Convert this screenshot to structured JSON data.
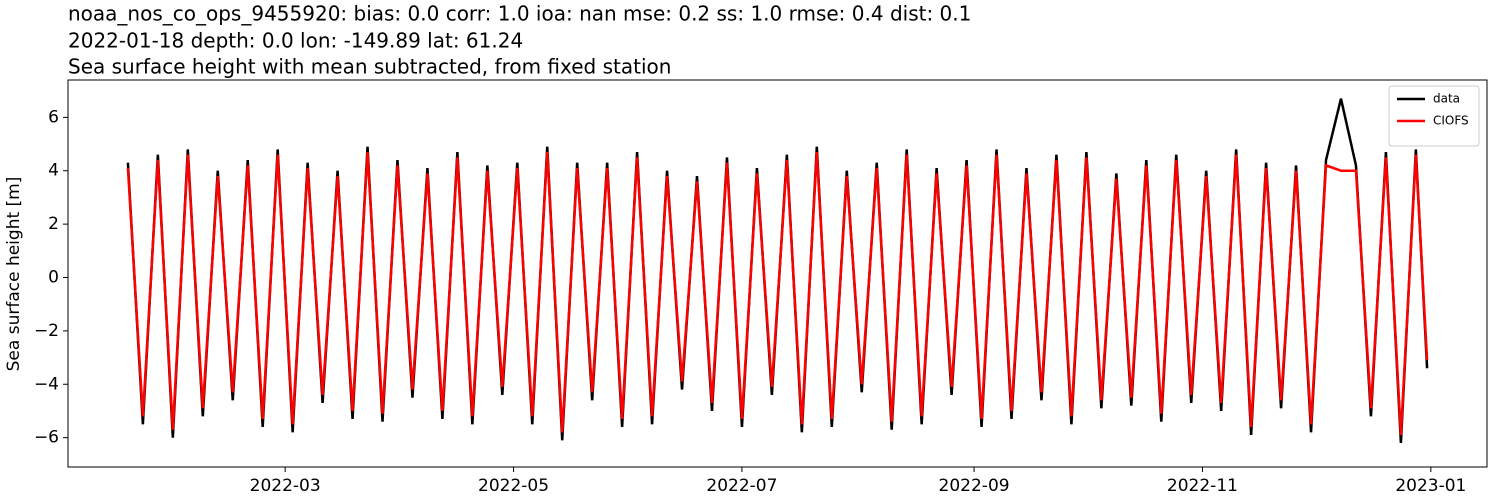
{
  "chart_data": {
    "type": "line",
    "title_lines": [
      "noaa_nos_co_ops_9455920: bias: 0.0  corr: 1.0  ioa: nan  mse: 0.2  ss: 1.0  rmse: 0.4  dist: 0.1",
      "2022-01-18 depth: 0.0 lon: -149.89 lat: 61.24",
      "Sea surface height with mean subtracted, from fixed station"
    ],
    "ylabel": "Sea surface height [m]",
    "x": [
      "2022-01-18",
      "2022-01-22",
      "2022-01-26",
      "2022-01-30",
      "2022-02-03",
      "2022-02-07",
      "2022-02-11",
      "2022-02-15",
      "2022-02-19",
      "2022-02-23",
      "2022-02-27",
      "2022-03-03",
      "2022-03-07",
      "2022-03-11",
      "2022-03-15",
      "2022-03-19",
      "2022-03-23",
      "2022-03-27",
      "2022-03-31",
      "2022-04-04",
      "2022-04-08",
      "2022-04-12",
      "2022-04-16",
      "2022-04-20",
      "2022-04-24",
      "2022-04-28",
      "2022-05-02",
      "2022-05-06",
      "2022-05-10",
      "2022-05-14",
      "2022-05-18",
      "2022-05-22",
      "2022-05-26",
      "2022-05-30",
      "2022-06-03",
      "2022-06-07",
      "2022-06-11",
      "2022-06-15",
      "2022-06-19",
      "2022-06-23",
      "2022-06-27",
      "2022-07-01",
      "2022-07-05",
      "2022-07-09",
      "2022-07-13",
      "2022-07-17",
      "2022-07-21",
      "2022-07-25",
      "2022-07-29",
      "2022-08-02",
      "2022-08-06",
      "2022-08-10",
      "2022-08-14",
      "2022-08-18",
      "2022-08-22",
      "2022-08-26",
      "2022-08-30",
      "2022-09-03",
      "2022-09-07",
      "2022-09-11",
      "2022-09-15",
      "2022-09-19",
      "2022-09-23",
      "2022-09-27",
      "2022-10-01",
      "2022-10-05",
      "2022-10-09",
      "2022-10-13",
      "2022-10-17",
      "2022-10-21",
      "2022-10-25",
      "2022-10-29",
      "2022-11-02",
      "2022-11-06",
      "2022-11-10",
      "2022-11-14",
      "2022-11-18",
      "2022-11-22",
      "2022-11-26",
      "2022-11-30",
      "2022-12-04",
      "2022-12-08",
      "2022-12-12",
      "2022-12-16",
      "2022-12-20",
      "2022-12-24",
      "2022-12-28",
      "2022-12-31"
    ],
    "series": [
      {
        "name": "data",
        "color": "#000000",
        "values": [
          4.3,
          -5.5,
          4.6,
          -6.0,
          4.8,
          -5.2,
          4.0,
          -4.6,
          4.4,
          -5.6,
          4.8,
          -5.8,
          4.3,
          -4.7,
          4.0,
          -5.3,
          4.9,
          -5.4,
          4.4,
          -4.5,
          4.1,
          -5.3,
          4.7,
          -5.5,
          4.2,
          -4.4,
          4.3,
          -5.5,
          4.9,
          -6.1,
          4.3,
          -4.6,
          4.3,
          -5.6,
          4.7,
          -5.5,
          4.0,
          -4.2,
          3.8,
          -5.0,
          4.5,
          -5.6,
          4.1,
          -4.4,
          4.6,
          -5.8,
          4.9,
          -5.6,
          4.0,
          -4.3,
          4.3,
          -5.7,
          4.8,
          -5.5,
          4.1,
          -4.4,
          4.4,
          -5.6,
          4.8,
          -5.3,
          4.1,
          -4.6,
          4.6,
          -5.5,
          4.7,
          -4.9,
          3.9,
          -4.8,
          4.4,
          -5.4,
          4.6,
          -4.7,
          4.0,
          -5.0,
          4.8,
          -5.9,
          4.3,
          -4.9,
          4.2,
          -5.8,
          4.4,
          6.7,
          4.2,
          -5.2,
          4.7,
          -6.2,
          4.8,
          -3.4
        ]
      },
      {
        "name": "CIOFS",
        "color": "#ff0000",
        "values": [
          4.1,
          -5.2,
          4.4,
          -5.7,
          4.6,
          -4.9,
          3.8,
          -4.3,
          4.2,
          -5.3,
          4.6,
          -5.5,
          4.1,
          -4.4,
          3.8,
          -5.0,
          4.7,
          -5.1,
          4.2,
          -4.2,
          3.9,
          -5.0,
          4.5,
          -5.2,
          4.0,
          -4.1,
          4.1,
          -5.2,
          4.7,
          -5.8,
          4.1,
          -4.3,
          4.1,
          -5.3,
          4.5,
          -5.2,
          3.8,
          -3.9,
          3.6,
          -4.7,
          4.3,
          -5.3,
          3.9,
          -4.1,
          4.4,
          -5.5,
          4.7,
          -5.3,
          3.8,
          -4.0,
          4.1,
          -5.4,
          4.6,
          -5.2,
          3.9,
          -4.1,
          4.2,
          -5.3,
          4.6,
          -5.0,
          3.9,
          -4.3,
          4.4,
          -5.2,
          4.5,
          -4.6,
          3.7,
          -4.5,
          4.2,
          -5.1,
          4.4,
          -4.4,
          3.8,
          -4.7,
          4.6,
          -5.6,
          4.1,
          -4.6,
          4.0,
          -5.5,
          4.2,
          4.0,
          4.0,
          -4.9,
          4.5,
          -5.9,
          4.6,
          -3.1
        ]
      }
    ],
    "xlim": [
      "2022-01-02",
      "2023-01-16"
    ],
    "xticks": [
      {
        "value": "2022-03-01",
        "label": "2022-03"
      },
      {
        "value": "2022-05-01",
        "label": "2022-05"
      },
      {
        "value": "2022-07-01",
        "label": "2022-07"
      },
      {
        "value": "2022-09-01",
        "label": "2022-09"
      },
      {
        "value": "2022-11-01",
        "label": "2022-11"
      },
      {
        "value": "2023-01-01",
        "label": "2023-01"
      }
    ],
    "ylim": [
      -7.1,
      7.4
    ],
    "yticks": [
      {
        "value": -6,
        "label": "−6"
      },
      {
        "value": -4,
        "label": "−4"
      },
      {
        "value": -2,
        "label": "−2"
      },
      0,
      2,
      4,
      6
    ],
    "legend": "upper right"
  }
}
